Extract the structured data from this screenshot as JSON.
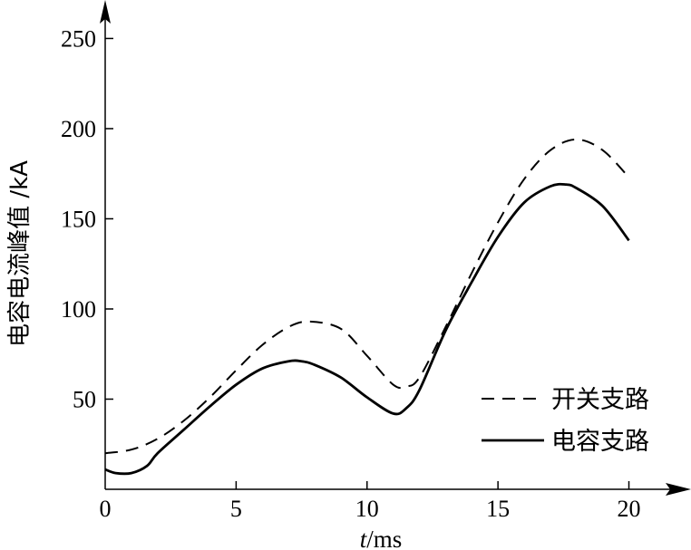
{
  "chart_data": {
    "type": "line",
    "xlabel": {
      "var": "t",
      "unit": "/ms"
    },
    "ylabel": "电容电流峰值 /kA",
    "xlim": [
      0,
      21
    ],
    "ylim": [
      0,
      265
    ],
    "xticks": [
      0,
      5,
      10,
      15,
      20
    ],
    "yticks": [
      50,
      100,
      150,
      200,
      250
    ],
    "legend": {
      "position": "bottom-right"
    },
    "series": [
      {
        "name": "开关支路",
        "style": "dashed",
        "color": "#000000",
        "x": [
          0,
          1,
          2,
          3,
          4,
          5,
          6,
          7,
          7.8,
          9,
          10,
          11,
          11.5,
          12,
          13,
          14,
          15,
          16,
          17,
          18,
          19,
          20
        ],
        "y": [
          20,
          22,
          28,
          38,
          51,
          66,
          80,
          90,
          93,
          89,
          74,
          58,
          57,
          62,
          90,
          120,
          148,
          172,
          188,
          194,
          188,
          173
        ]
      },
      {
        "name": "电容支路",
        "style": "solid",
        "color": "#000000",
        "x": [
          0,
          0.4,
          1,
          1.6,
          2,
          3,
          4,
          5,
          6,
          7,
          7.5,
          8,
          9,
          10,
          11,
          11.5,
          12,
          13,
          14,
          15,
          16,
          17,
          17.6,
          18,
          19,
          20
        ],
        "y": [
          11,
          9,
          9,
          13,
          20,
          33,
          46,
          58,
          67,
          71,
          71,
          69,
          62,
          51,
          42,
          45,
          55,
          88,
          115,
          140,
          159,
          168,
          169,
          167,
          157,
          138
        ]
      }
    ]
  }
}
